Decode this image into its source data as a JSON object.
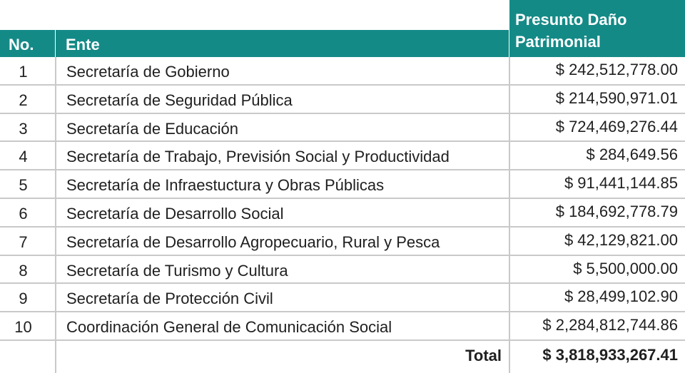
{
  "header": {
    "no": "No.",
    "ente": "Ente",
    "amount_line1": "Presunto Daño",
    "amount_line2": "Patrimonial"
  },
  "rows": [
    {
      "no": "1",
      "ente": "Secretaría de Gobierno",
      "amount": "$ 242,512,778.00"
    },
    {
      "no": "2",
      "ente": "Secretaría de Seguridad Pública",
      "amount": "$ 214,590,971.01"
    },
    {
      "no": "3",
      "ente": "Secretaría de Educación",
      "amount": "$ 724,469,276.44"
    },
    {
      "no": "4",
      "ente": "Secretaría de Trabajo, Previsión Social y Productividad",
      "amount": "$ 284,649.56"
    },
    {
      "no": "5",
      "ente": "Secretaría de Infraestuctura y Obras Públicas",
      "amount": "$ 91,441,144.85"
    },
    {
      "no": "6",
      "ente": "Secretaría de Desarrollo Social",
      "amount": "$ 184,692,778.79"
    },
    {
      "no": "7",
      "ente": "Secretaría de Desarrollo Agropecuario, Rural y Pesca",
      "amount": "$ 42,129,821.00"
    },
    {
      "no": "8",
      "ente": "Secretaría de Turismo y Cultura",
      "amount": "$ 5,500,000.00"
    },
    {
      "no": "9",
      "ente": "Secretaría de Protección Civil",
      "amount": "$ 28,499,102.90"
    },
    {
      "no": "10",
      "ente": "Coordinación General de Comunicación Social",
      "amount": "$ 2,284,812,744.86"
    }
  ],
  "total": {
    "label": "Total",
    "amount": "$ 3,818,933,267.41"
  },
  "colors": {
    "header_bg": "#148a87",
    "grid": "#c9c9c9"
  }
}
